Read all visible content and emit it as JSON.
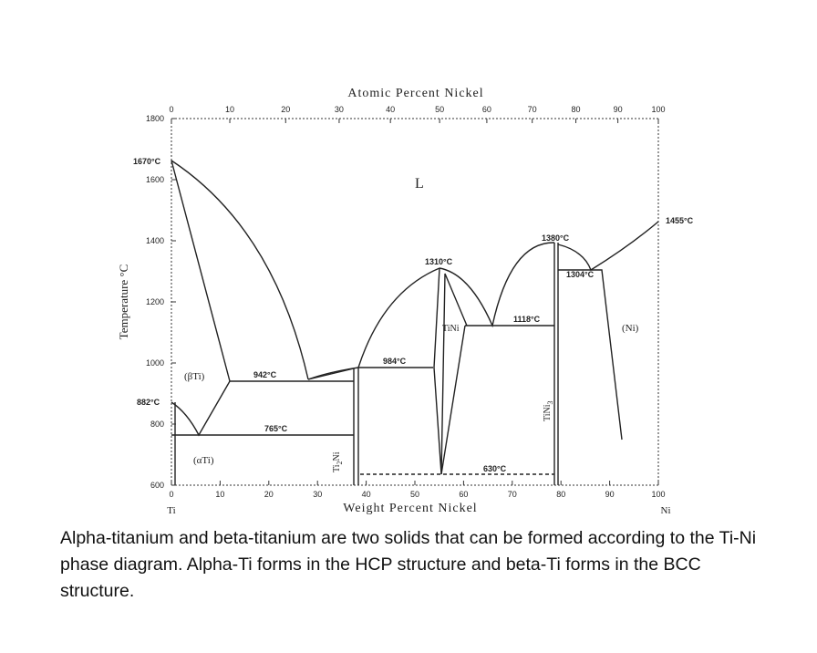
{
  "diagram": {
    "top_axis_title": "Atomic Percent Nickel",
    "top_ticks": [
      "0",
      "10",
      "20",
      "30",
      "40",
      "50",
      "60",
      "70",
      "80",
      "90",
      "100"
    ],
    "bottom_ticks": [
      "0",
      "10",
      "20",
      "30",
      "40",
      "50",
      "60",
      "70",
      "80",
      "90",
      "100"
    ],
    "left_ticks": [
      "600",
      "800",
      "1000",
      "1200",
      "1400",
      "1600",
      "1800"
    ],
    "bottom_axis_title": "Weight Percent Nickel",
    "left_axis_title": "Temperature °C",
    "left_end": "Ti",
    "right_end": "Ni",
    "labels": {
      "liquid": "L",
      "t1670": "1670°C",
      "t882": "882°C",
      "beta_ti": "(βTi)",
      "alpha_ti": "(αTi)",
      "t942": "942°C",
      "t765": "765°C",
      "t984": "984°C",
      "t1310": "1310°C",
      "tini": "TiNi",
      "t1118": "1118°C",
      "t1380": "1380°C",
      "t1304": "1304°C",
      "ni": "(Ni)",
      "t1455": "1455°C",
      "t630": "630°C",
      "ti2ni": [
        "Ti",
        "2",
        "Ni"
      ],
      "tini3": [
        "TiNi",
        "3"
      ]
    }
  },
  "caption": "Alpha-titanium and beta-titanium are two solids that can be formed according to the Ti-Ni phase diagram. Alpha-Ti forms in the HCP structure and beta-Ti forms in the BCC structure."
}
